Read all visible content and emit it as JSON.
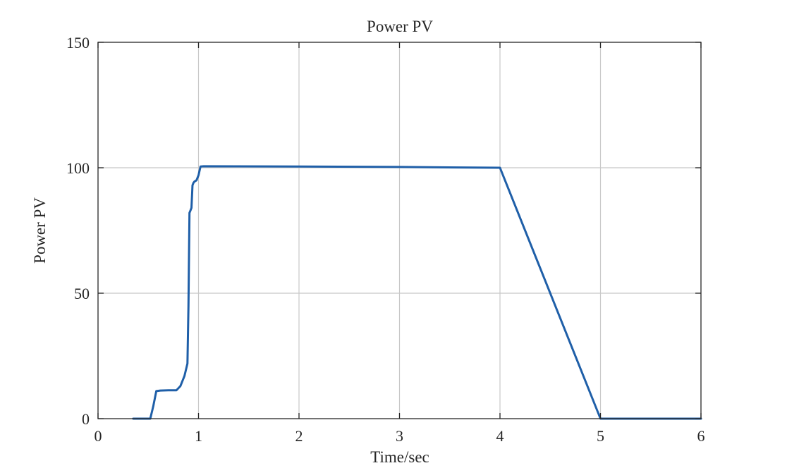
{
  "colors": {
    "background": "#ffffff",
    "axis": "#262626",
    "grid": "#c8c8c8",
    "series": "#1f5fa8"
  },
  "chart_data": {
    "type": "line",
    "title": "Power PV",
    "xlabel": "Time/sec",
    "ylabel": "Power PV",
    "xlim": [
      0,
      6
    ],
    "ylim": [
      0,
      150
    ],
    "xticks": [
      0,
      1,
      2,
      3,
      4,
      5,
      6
    ],
    "yticks": [
      0,
      50,
      100,
      150
    ],
    "xtick_labels": [
      "0",
      "1",
      "2",
      "3",
      "4",
      "5",
      "6"
    ],
    "ytick_labels": [
      "0",
      "50",
      "100",
      "150"
    ],
    "grid": true,
    "series": [
      {
        "name": "Power PV",
        "x": [
          0.35,
          0.52,
          0.55,
          0.58,
          0.62,
          0.7,
          0.78,
          0.82,
          0.86,
          0.89,
          0.9,
          0.91,
          0.92,
          0.93,
          0.94,
          0.95,
          0.96,
          0.98,
          1.0,
          1.02,
          1.05,
          2.0,
          3.0,
          4.0,
          5.0,
          6.0
        ],
        "y": [
          0,
          0,
          5,
          11,
          11.2,
          11.3,
          11.3,
          13,
          17,
          22,
          45,
          82,
          83,
          84,
          93,
          94,
          94.5,
          95,
          97,
          100.5,
          100.6,
          100.5,
          100.3,
          100,
          0,
          0
        ]
      }
    ]
  }
}
